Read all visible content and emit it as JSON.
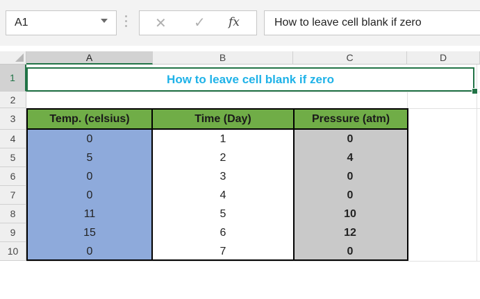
{
  "name_box": {
    "value": "A1"
  },
  "formula_bar": {
    "cancel_icon": "close-icon",
    "enter_icon": "check-icon",
    "fx_label": "fx",
    "content": "How to leave cell blank if zero"
  },
  "columns": [
    "A",
    "B",
    "C",
    "D"
  ],
  "rows": [
    "1",
    "2",
    "3",
    "4",
    "5",
    "6",
    "7",
    "8",
    "9",
    "10"
  ],
  "title": "How to leave cell blank if zero",
  "table": {
    "headers": [
      "Temp. (celsius)",
      "Time (Day)",
      "Pressure (atm)"
    ],
    "temp": [
      "0",
      "5",
      "0",
      "0",
      "11",
      "15",
      "0"
    ],
    "time": [
      "1",
      "2",
      "3",
      "4",
      "5",
      "6",
      "7"
    ],
    "pressure": [
      "0",
      "4",
      "0",
      "0",
      "10",
      "12",
      "0"
    ]
  },
  "colors": {
    "header_green": "#70ad47",
    "temp_blue": "#8eaadb",
    "pressure_gray": "#c9c9c9",
    "title_blue": "#1fb2e8",
    "selection_green": "#217346"
  }
}
